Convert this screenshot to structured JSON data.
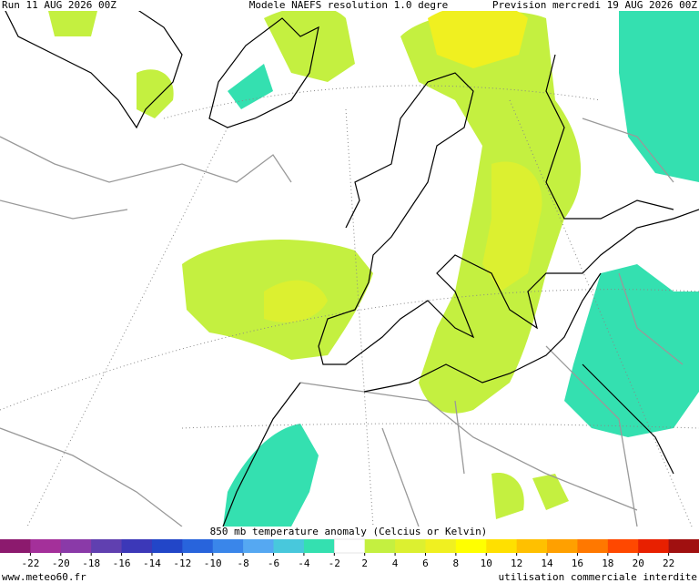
{
  "header": {
    "run": "Run 11 AUG 2026 00Z",
    "model": "Modele NAEFS resolution 1.0 degre",
    "forecast": "Prevision mercredi 19 AUG 2026 00Z"
  },
  "legend": {
    "title": "850 mb temperature anomaly (Celcius or Kelvin)",
    "ticks": [
      -22,
      -20,
      -18,
      -16,
      -14,
      -12,
      -10,
      -8,
      -6,
      -4,
      -2,
      2,
      4,
      6,
      8,
      10,
      12,
      14,
      16,
      18,
      20,
      22
    ],
    "colors": [
      "#8c1a6e",
      "#a4309a",
      "#8a3aa8",
      "#6040b0",
      "#3c38b8",
      "#2246c8",
      "#2864dc",
      "#3a86ea",
      "#55a8f2",
      "#48c8dc",
      "#34e0b0",
      "#ffffff",
      "#c4f040",
      "#dcf030",
      "#f0f020",
      "#ffff00",
      "#ffe000",
      "#ffc000",
      "#ffa000",
      "#ff7800",
      "#ff4800",
      "#e82000",
      "#a01010"
    ]
  },
  "footer": {
    "site": "www.meteo60.fr",
    "notice": "utilisation commerciale interdite"
  }
}
